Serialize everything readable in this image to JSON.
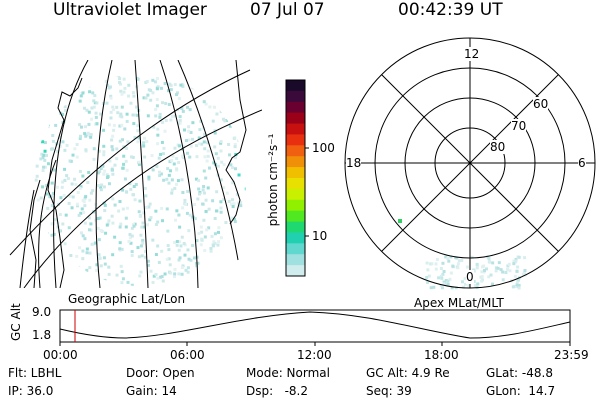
{
  "header": {
    "instrument": "Ultraviolet Imager",
    "date": "07 Jul 07",
    "time": "00:42:39 UT"
  },
  "colorbar": {
    "unit_label": "photon cm⁻²s⁻¹",
    "ticks": [
      "100",
      "10"
    ],
    "colors": [
      "#1a0a2a",
      "#3a0a3a",
      "#6a0030",
      "#9a0018",
      "#c81010",
      "#e83010",
      "#f06010",
      "#f09008",
      "#f0c000",
      "#e8e000",
      "#c8f000",
      "#90f000",
      "#50e820",
      "#20d870",
      "#20d0b0",
      "#60d8d0",
      "#a0e0e0",
      "#d0ecec"
    ]
  },
  "left_panel": {
    "caption": "Geographic Lat/Lon"
  },
  "right_panel": {
    "caption": "Apex MLat/MLT",
    "mlt_labels": {
      "top": "12",
      "left": "18",
      "right": "6",
      "bottom": "0"
    },
    "mlat_labels": [
      "60",
      "70",
      "80"
    ]
  },
  "timeline": {
    "axis_label": "GC Alt",
    "y_ticks": [
      "9.0",
      "1.8"
    ],
    "x_ticks": [
      "00:00",
      "06:00",
      "12:00",
      "18:00",
      "23:59"
    ],
    "marker_color": "#cc0000"
  },
  "status": {
    "flt": "Flt: LBHL",
    "ip": "IP: 36.0",
    "door": "Door: Open",
    "gain": "Gain: 14",
    "mode": "Mode: Normal",
    "dsp": "Dsp:   -8.2",
    "gc_alt": "GC Alt: 4.9 Re",
    "seq": "Seq: 39",
    "glat": "GLat: -48.8",
    "glon": "GLon:  14.7"
  }
}
